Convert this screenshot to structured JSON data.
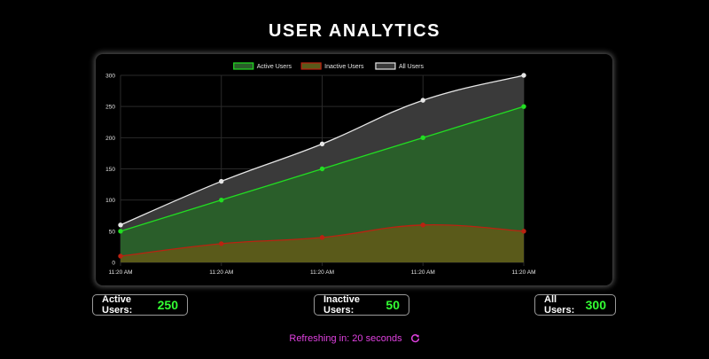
{
  "header": {
    "title": "USER ANALYTICS"
  },
  "chart_data": {
    "type": "area",
    "title": "",
    "xlabel": "",
    "ylabel": "",
    "categories": [
      "11:20 AM",
      "11:20 AM",
      "11:20 AM",
      "11:20 AM",
      "11:20 AM"
    ],
    "ylim": [
      0,
      300
    ],
    "yticks": [
      0,
      50,
      100,
      150,
      200,
      250,
      300
    ],
    "grid": true,
    "legend": "top-center",
    "series": [
      {
        "name": "Active Users",
        "values": [
          50,
          100,
          150,
          200,
          250
        ],
        "color": "#22dd22",
        "fill": "#2a5e2a"
      },
      {
        "name": "Inactive Users",
        "values": [
          10,
          30,
          40,
          60,
          50
        ],
        "color": "#bb2211",
        "fill": "#5a5a1a"
      },
      {
        "name": "All Users",
        "values": [
          60,
          130,
          190,
          260,
          300
        ],
        "color": "#e6e6e6",
        "fill": "#3a3a3a"
      }
    ]
  },
  "stats": {
    "active": {
      "label": "Active Users:",
      "value": "250"
    },
    "inactive": {
      "label": "Inactive Users:",
      "value": "50"
    },
    "all": {
      "label": "All Users:",
      "value": "300"
    }
  },
  "refresh": {
    "text": "Refreshing in: 20 seconds",
    "icon": "refresh-icon",
    "color": "#e041e0"
  }
}
